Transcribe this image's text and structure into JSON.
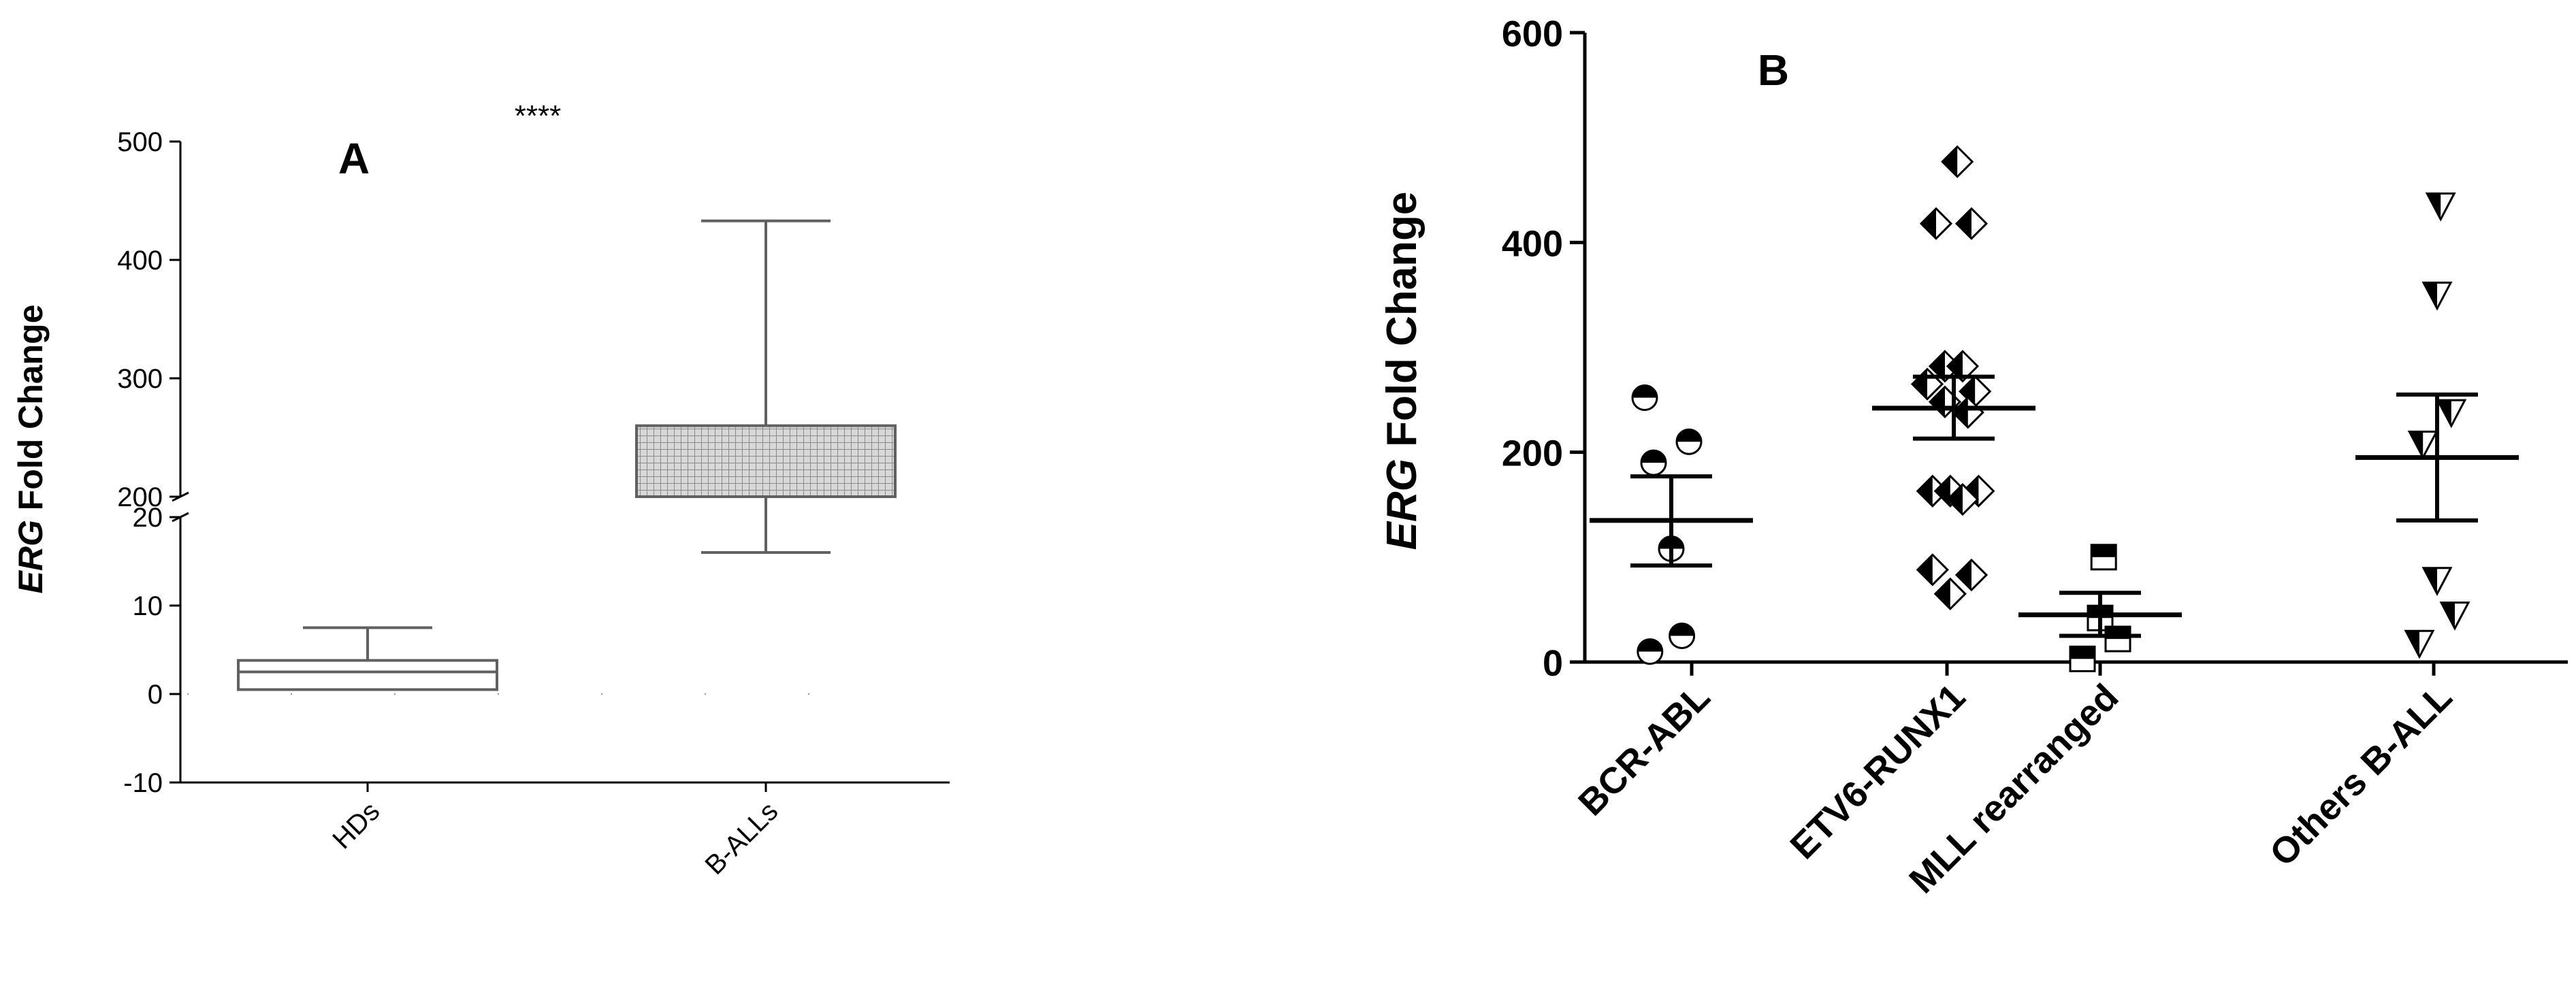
{
  "chart_data": [
    {
      "type": "box",
      "panel": "A",
      "significance": "****",
      "ylabel_italic": "ERG",
      "ylabel_rest": " Fold Change",
      "axis_break": {
        "lower": [
          -10,
          20
        ],
        "upper": [
          200,
          500
        ]
      },
      "yticks_lower": [
        -10,
        0,
        10,
        20
      ],
      "yticks_upper": [
        200,
        300,
        400,
        500
      ],
      "categories": [
        "HDs",
        "B-ALLs"
      ],
      "boxes": [
        {
          "name": "HDs",
          "min": 0.5,
          "q1": 0.5,
          "median": 2.5,
          "q3": 3.8,
          "max": 7.5,
          "fill": "none"
        },
        {
          "name": "B-ALLs",
          "min": 16,
          "q1": 200,
          "median": 200,
          "q3": 260,
          "max": 433,
          "fill": "grid"
        }
      ],
      "colors": {
        "box_stroke": "#606060",
        "grid_fill": "#c8c8c8",
        "axis": "#000000"
      }
    },
    {
      "type": "scatter",
      "panel": "B",
      "ylabel_italic": "ERG",
      "ylabel_rest": " Fold Change",
      "ylim": [
        0,
        600
      ],
      "yticks": [
        0,
        200,
        400,
        600
      ],
      "categories": [
        "BCR-ABL",
        "ETV6-RUNX1",
        "MLL rearranged",
        "Others B-ALL"
      ],
      "series": [
        {
          "category": "BCR-ABL",
          "marker": "circle",
          "mean": 135,
          "sem_low": 92,
          "sem_high": 177,
          "points": [
            [
              -0.15,
              252
            ],
            [
              -0.1,
              190
            ],
            [
              0.1,
              210
            ],
            [
              0.0,
              108
            ],
            [
              -0.12,
              10
            ],
            [
              0.06,
              25
            ]
          ]
        },
        {
          "category": "ETV6-RUNX1",
          "marker": "diamond",
          "mean": 242,
          "sem_low": 213,
          "sem_high": 272,
          "points": [
            [
              0.02,
              477
            ],
            [
              -0.1,
              418
            ],
            [
              0.1,
              418
            ],
            [
              -0.15,
              265
            ],
            [
              0.12,
              258
            ],
            [
              -0.05,
              282
            ],
            [
              0.05,
              282
            ],
            [
              -0.05,
              248
            ],
            [
              0.08,
              238
            ],
            [
              -0.12,
              163
            ],
            [
              -0.02,
              163
            ],
            [
              0.14,
              163
            ],
            [
              0.05,
              155
            ],
            [
              -0.12,
              88
            ],
            [
              -0.02,
              65
            ],
            [
              0.1,
              83
            ]
          ]
        },
        {
          "category": "MLL rearranged",
          "marker": "square",
          "mean": 45,
          "sem_low": 25,
          "sem_high": 66,
          "points": [
            [
              0.02,
              100
            ],
            [
              0.0,
              42
            ],
            [
              0.1,
              22
            ],
            [
              -0.1,
              3
            ]
          ]
        },
        {
          "category": "Others B-ALL",
          "marker": "triangle-down",
          "mean": 195,
          "sem_low": 135,
          "sem_high": 255,
          "points": [
            [
              0.02,
              435
            ],
            [
              0.0,
              350
            ],
            [
              0.08,
              238
            ],
            [
              -0.08,
              208
            ],
            [
              0.0,
              78
            ],
            [
              0.1,
              45
            ],
            [
              -0.1,
              18
            ]
          ]
        }
      ],
      "colors": {
        "marker_fill": "#000000",
        "axis": "#000000"
      }
    }
  ]
}
